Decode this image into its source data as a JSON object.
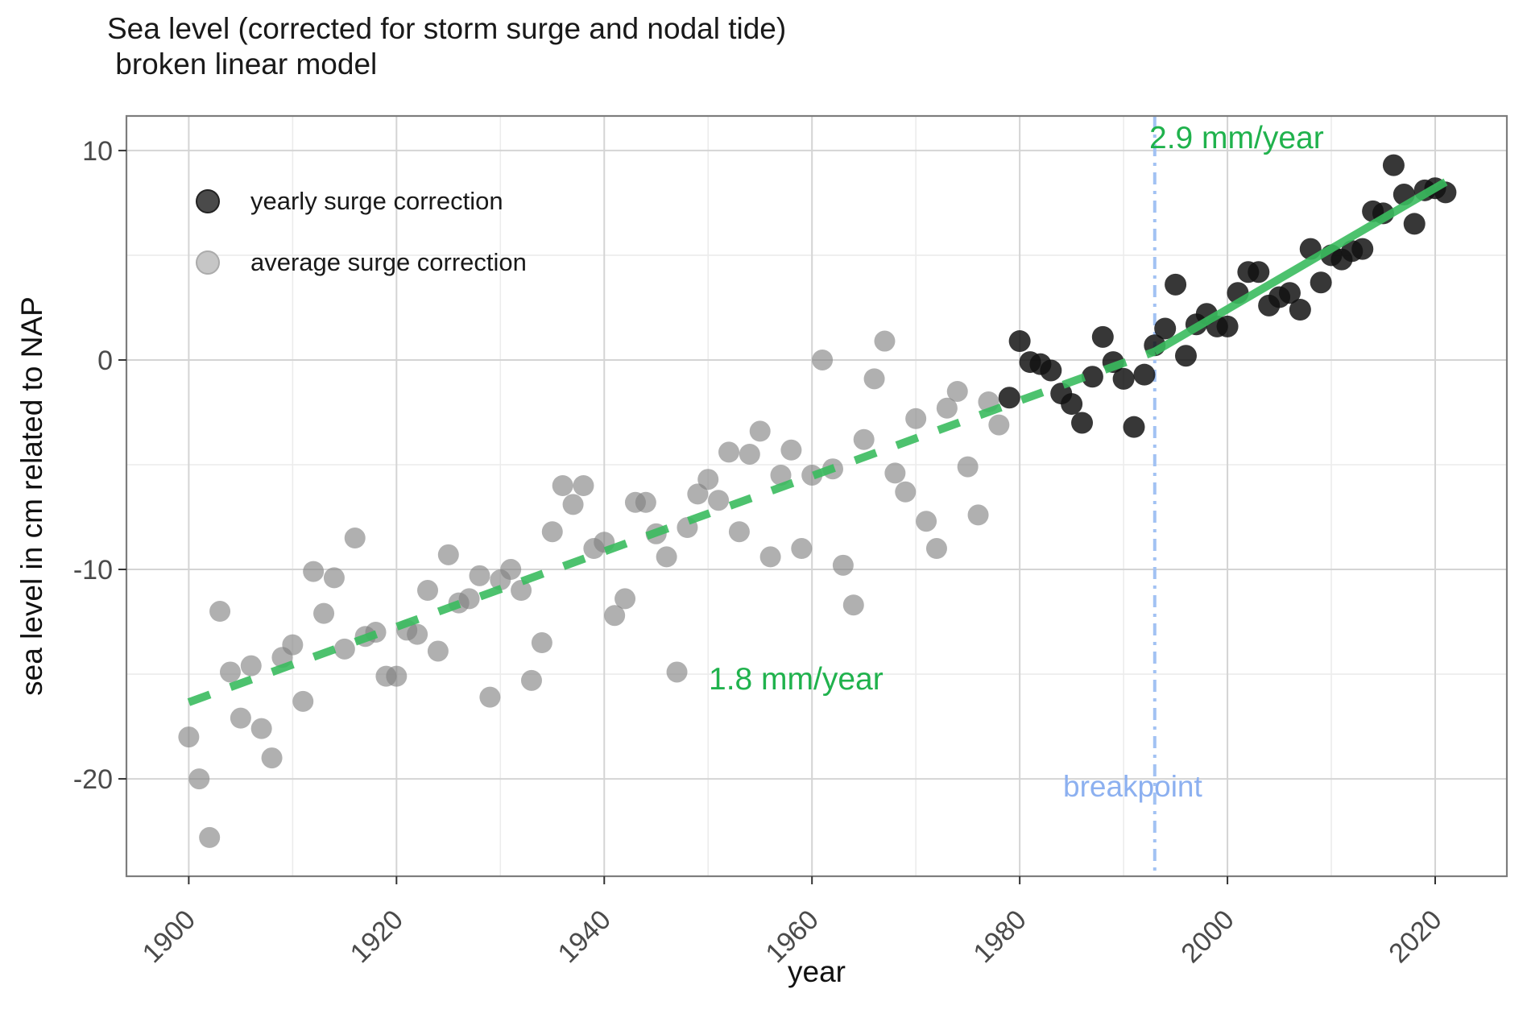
{
  "title": {
    "line1": "Sea level (corrected for storm surge and nodal tide)",
    "line2": " broken linear model"
  },
  "colors": {
    "yearly_point": "#111111",
    "average_point": "#7f7f7f",
    "trend_green": "#3abb5e",
    "annotation_green": "#20b24d",
    "breakpoint_blue": "#a2c2f3",
    "breakpoint_text_blue": "#8cb0f0",
    "grid_major": "#d4d4d4",
    "grid_minor": "#ececec",
    "panel_border": "#7d7d7d",
    "tick_label": "#4a4a4a"
  },
  "legend": {
    "entries": [
      {
        "label": "yearly surge correction"
      },
      {
        "label": "average surge correction"
      }
    ]
  },
  "chart_data": {
    "type": "scatter",
    "title": "Sea level (corrected for storm surge and nodal tide)",
    "subtitle": "broken linear model",
    "xlabel": "year",
    "ylabel": "sea level in cm related to NAP",
    "xlim": [
      1894.0,
      2026.9
    ],
    "ylim": [
      -24.65,
      11.65
    ],
    "x_major_ticks": [
      1900,
      1920,
      1940,
      1960,
      1980,
      2000,
      2020
    ],
    "x_minor_ticks": [
      1910,
      1930,
      1950,
      1970,
      1990,
      2010
    ],
    "y_major_ticks": [
      10,
      0,
      -10,
      -20
    ],
    "y_minor_ticks": [
      5,
      -5,
      -15
    ],
    "grid": true,
    "legend_position": "inside top-left",
    "series": [
      {
        "name": "yearly surge correction",
        "marker": "dark circle",
        "points": [
          [
            1979,
            -1.8
          ],
          [
            1980,
            0.9
          ],
          [
            1981,
            -0.1
          ],
          [
            1982,
            -0.2
          ],
          [
            1983,
            -0.5
          ],
          [
            1984,
            -1.6
          ],
          [
            1985,
            -2.1
          ],
          [
            1986,
            -3.0
          ],
          [
            1987,
            -0.8
          ],
          [
            1988,
            1.1
          ],
          [
            1989,
            -0.1
          ],
          [
            1990,
            -0.9
          ],
          [
            1991,
            -3.2
          ],
          [
            1992,
            -0.7
          ],
          [
            1993,
            0.7
          ],
          [
            1994,
            1.5
          ],
          [
            1995,
            3.6
          ],
          [
            1996,
            0.2
          ],
          [
            1997,
            1.7
          ],
          [
            1998,
            2.2
          ],
          [
            1999,
            1.6
          ],
          [
            2000,
            1.6
          ],
          [
            2001,
            3.2
          ],
          [
            2002,
            4.2
          ],
          [
            2003,
            4.2
          ],
          [
            2004,
            2.6
          ],
          [
            2005,
            3.0
          ],
          [
            2006,
            3.2
          ],
          [
            2007,
            2.4
          ],
          [
            2008,
            5.3
          ],
          [
            2009,
            3.7
          ],
          [
            2010,
            5.0
          ],
          [
            2011,
            4.8
          ],
          [
            2012,
            5.2
          ],
          [
            2013,
            5.3
          ],
          [
            2014,
            7.1
          ],
          [
            2015,
            7.0
          ],
          [
            2016,
            9.3
          ],
          [
            2017,
            7.9
          ],
          [
            2018,
            6.5
          ],
          [
            2019,
            8.1
          ],
          [
            2020,
            8.2
          ],
          [
            2021,
            8.0
          ]
        ]
      },
      {
        "name": "average surge correction",
        "marker": "light gray circle",
        "points": [
          [
            1900,
            -18.0
          ],
          [
            1901,
            -20.0
          ],
          [
            1902,
            -22.8
          ],
          [
            1903,
            -12.0
          ],
          [
            1904,
            -14.9
          ],
          [
            1905,
            -17.1
          ],
          [
            1906,
            -14.6
          ],
          [
            1907,
            -17.6
          ],
          [
            1908,
            -19.0
          ],
          [
            1909,
            -14.2
          ],
          [
            1910,
            -13.6
          ],
          [
            1911,
            -16.3
          ],
          [
            1912,
            -10.1
          ],
          [
            1913,
            -12.1
          ],
          [
            1914,
            -10.4
          ],
          [
            1915,
            -13.8
          ],
          [
            1916,
            -8.5
          ],
          [
            1917,
            -13.2
          ],
          [
            1918,
            -13.0
          ],
          [
            1919,
            -15.1
          ],
          [
            1920,
            -15.1
          ],
          [
            1921,
            -12.9
          ],
          [
            1922,
            -13.1
          ],
          [
            1923,
            -11.0
          ],
          [
            1924,
            -13.9
          ],
          [
            1925,
            -9.3
          ],
          [
            1926,
            -11.6
          ],
          [
            1927,
            -11.4
          ],
          [
            1928,
            -10.3
          ],
          [
            1929,
            -16.1
          ],
          [
            1930,
            -10.5
          ],
          [
            1931,
            -10.0
          ],
          [
            1932,
            -11.0
          ],
          [
            1933,
            -15.3
          ],
          [
            1934,
            -13.5
          ],
          [
            1935,
            -8.2
          ],
          [
            1936,
            -6.0
          ],
          [
            1937,
            -6.9
          ],
          [
            1938,
            -6.0
          ],
          [
            1939,
            -9.0
          ],
          [
            1940,
            -8.7
          ],
          [
            1941,
            -12.2
          ],
          [
            1942,
            -11.4
          ],
          [
            1943,
            -6.8
          ],
          [
            1944,
            -6.8
          ],
          [
            1945,
            -8.3
          ],
          [
            1946,
            -9.4
          ],
          [
            1947,
            -14.9
          ],
          [
            1948,
            -8.0
          ],
          [
            1949,
            -6.4
          ],
          [
            1950,
            -5.7
          ],
          [
            1951,
            -6.7
          ],
          [
            1952,
            -4.4
          ],
          [
            1953,
            -8.2
          ],
          [
            1954,
            -4.5
          ],
          [
            1955,
            -3.4
          ],
          [
            1956,
            -9.4
          ],
          [
            1957,
            -5.5
          ],
          [
            1958,
            -4.3
          ],
          [
            1959,
            -9.0
          ],
          [
            1960,
            -5.5
          ],
          [
            1961,
            0.0
          ],
          [
            1962,
            -5.2
          ],
          [
            1963,
            -9.8
          ],
          [
            1964,
            -11.7
          ],
          [
            1965,
            -3.8
          ],
          [
            1966,
            -0.9
          ],
          [
            1967,
            0.9
          ],
          [
            1968,
            -5.4
          ],
          [
            1969,
            -6.3
          ],
          [
            1970,
            -2.8
          ],
          [
            1971,
            -7.7
          ],
          [
            1972,
            -9.0
          ],
          [
            1973,
            -2.3
          ],
          [
            1974,
            -1.5
          ],
          [
            1975,
            -5.1
          ],
          [
            1976,
            -7.4
          ],
          [
            1977,
            -2.0
          ],
          [
            1978,
            -3.1
          ]
        ]
      }
    ],
    "trend": {
      "segment_before": {
        "label": "1.8 mm/year",
        "rate_mm_per_year": 1.8,
        "x": [
          1900,
          1993
        ],
        "y": [
          -16.34,
          0.4
        ],
        "style": "dashed"
      },
      "segment_after": {
        "label": "2.9 mm/year",
        "rate_mm_per_year": 2.9,
        "x": [
          1993,
          2021
        ],
        "y": [
          0.4,
          8.5
        ],
        "style": "solid"
      }
    },
    "breakpoint": {
      "x": 1993,
      "label": "breakpoint",
      "style": "dash-dot vertical line"
    }
  }
}
